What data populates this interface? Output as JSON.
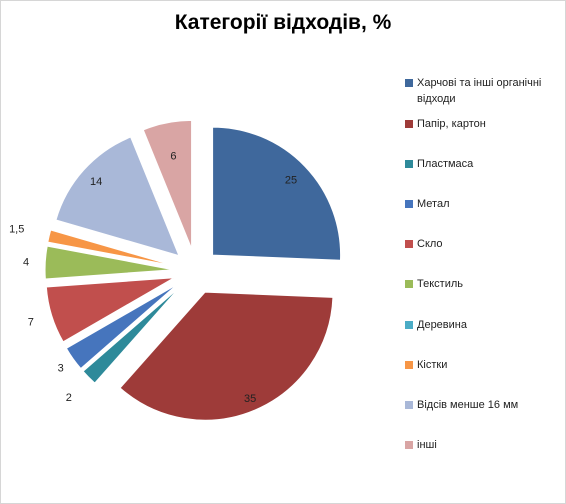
{
  "chart_data": {
    "type": "pie",
    "title": "Категорії відходів, %",
    "legend_position": "right",
    "exploded": true,
    "slices": [
      {
        "label": "Харчові та інші органічні відходи",
        "value": 25,
        "value_label": "25",
        "color": "#3f689c"
      },
      {
        "label": "Папір, картон",
        "value": 35,
        "value_label": "35",
        "color": "#9e3b39"
      },
      {
        "label": "Пластмаса",
        "value": 2,
        "value_label": "2",
        "color": "#2e8a9a"
      },
      {
        "label": "Метал",
        "value": 3,
        "value_label": "3",
        "color": "#4675bd"
      },
      {
        "label": "Скло",
        "value": 7,
        "value_label": "7",
        "color": "#c14f4d"
      },
      {
        "label": "Текстиль",
        "value": 4,
        "value_label": "4",
        "color": "#9bbb59"
      },
      {
        "label": "Деревина",
        "value": 0,
        "value_label": "",
        "color": "#4bacc6"
      },
      {
        "label": "Кістки",
        "value": 1.5,
        "value_label": "1,5",
        "color": "#f79646"
      },
      {
        "label": "Відсів менше 16 мм",
        "value": 14,
        "value_label": "14",
        "color": "#a9b8d8"
      },
      {
        "label": "інші",
        "value": 6,
        "value_label": "6",
        "color": "#d9a5a4"
      }
    ]
  }
}
